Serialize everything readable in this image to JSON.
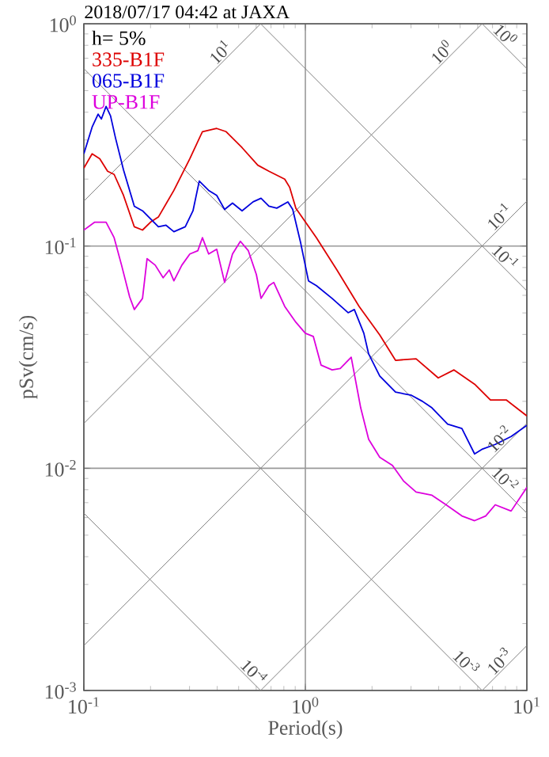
{
  "chart_data": {
    "type": "line",
    "title": "2018/07/17 04:42 at JAXA",
    "xlabel": "Period(s)",
    "ylabel": "pSv(cm/s)",
    "log": "xy",
    "grid": true,
    "legend": "top left",
    "xlim": [
      0.1,
      10
    ],
    "ylim": [
      0.001,
      1
    ],
    "xticks": [
      {
        "value": 0.1,
        "label": "10$^{-1}$"
      },
      {
        "value": 1,
        "label": "10$^{0}$"
      },
      {
        "value": 10,
        "label": "10$^{1}$"
      }
    ],
    "yticks": [
      {
        "value": 0.001,
        "label": "10$^{-3}$"
      },
      {
        "value": 0.01,
        "label": "10$^{-2}$"
      },
      {
        "value": 0.1,
        "label": "10$^{-1}$"
      },
      {
        "value": 1,
        "label": "10$^{0}$"
      }
    ],
    "annotations": [
      "h= 5%",
      {
        "text": "10$^{1}$",
        "x": 0.44,
        "y": 0.7003
      },
      {
        "text": "10$^{0}$",
        "x": 7.5,
        "y": 0.8377
      },
      {
        "text": "10$^{0}$",
        "x": 4.4,
        "y": 0.7003
      },
      {
        "text": "10$^{-1}$",
        "x": 8,
        "y": 0.1273
      },
      {
        "text": "10$^{-1}$",
        "x": 7.5,
        "y": 0.08377
      },
      {
        "text": "10$^{-2}$",
        "x": 8,
        "y": 0.01273
      },
      {
        "text": "10$^{-2}$",
        "x": 7.5,
        "y": 0.008377
      },
      {
        "text": "10$^{-3}$",
        "x": 8,
        "y": 0.001273
      },
      {
        "text": "10$^{-3}$",
        "x": 5,
        "y": 0.0012566
      },
      {
        "text": "10$^{-4}$",
        "x": 0.55,
        "y": 0.001142
      }
    ],
    "series": [
      {
        "color": "#808080",
        "x": [
          6.283,
          10
        ],
        "values": [
          1,
          0.6283
        ]
      },
      {
        "color": "#808080",
        "x": [
          0.6283,
          10
        ],
        "values": [
          1,
          0.06283
        ]
      },
      {
        "color": "#808080",
        "x": [
          0.1,
          10
        ],
        "values": [
          0.6283,
          0.006283
        ]
      },
      {
        "color": "#808080",
        "x": [
          0.1,
          6.283
        ],
        "values": [
          0.06283,
          0.001
        ]
      },
      {
        "color": "#808080",
        "x": [
          0.1,
          0.6283
        ],
        "values": [
          0.006283,
          0.001
        ]
      },
      {
        "color": "#808080",
        "x": [
          0.1,
          0.6283
        ],
        "values": [
          0.1592,
          1
        ]
      },
      {
        "color": "#808080",
        "x": [
          0.1,
          6.283
        ],
        "values": [
          0.01592,
          1
        ]
      },
      {
        "color": "#808080",
        "x": [
          0.1,
          10
        ],
        "values": [
          0.001592,
          0.1592
        ]
      },
      {
        "color": "#808080",
        "x": [
          0.6283,
          10
        ],
        "values": [
          0.001,
          0.01592
        ]
      },
      {
        "color": "#808080",
        "x": [
          6.283,
          10
        ],
        "values": [
          0.001,
          0.001592
        ]
      },
      {
        "name": "335-B1F",
        "color": "#dd0000",
        "x": [
          0.1,
          0.109,
          0.118,
          0.128,
          0.137,
          0.151,
          0.169,
          0.184,
          0.2,
          0.217,
          0.255,
          0.301,
          0.343,
          0.398,
          0.439,
          0.518,
          0.61,
          0.685,
          0.807,
          0.849,
          0.906,
          1.122,
          1.389,
          1.749,
          2.167,
          2.553,
          3.162,
          3.981,
          4.69,
          5.81,
          6.85,
          8.07,
          10
        ],
        "values": [
          0.224,
          0.26,
          0.247,
          0.217,
          0.21,
          0.169,
          0.122,
          0.118,
          0.128,
          0.135,
          0.178,
          0.247,
          0.327,
          0.338,
          0.327,
          0.277,
          0.231,
          0.217,
          0.2,
          0.184,
          0.148,
          0.109,
          0.078,
          0.0535,
          0.0398,
          0.0306,
          0.0311,
          0.0255,
          0.0277,
          0.0239,
          0.0203,
          0.0203,
          0.0172
        ]
      },
      {
        "name": "065-B1F",
        "color": "#0000dd",
        "x": [
          0.1,
          0.109,
          0.116,
          0.12,
          0.126,
          0.132,
          0.139,
          0.151,
          0.169,
          0.184,
          0.217,
          0.235,
          0.255,
          0.287,
          0.311,
          0.332,
          0.366,
          0.398,
          0.432,
          0.469,
          0.518,
          0.581,
          0.631,
          0.685,
          0.743,
          0.834,
          0.877,
          0.953,
          1.033,
          1.122,
          1.321,
          1.56,
          1.664,
          1.837,
          1.931,
          2.167,
          2.553,
          3.013,
          3.38,
          3.73,
          4.39,
          5.09,
          5.81,
          6.31,
          7.2,
          8.49,
          10
        ],
        "values": [
          0.26,
          0.343,
          0.392,
          0.373,
          0.425,
          0.385,
          0.306,
          0.22,
          0.151,
          0.144,
          0.122,
          0.124,
          0.116,
          0.122,
          0.144,
          0.196,
          0.178,
          0.169,
          0.146,
          0.156,
          0.144,
          0.158,
          0.164,
          0.151,
          0.148,
          0.158,
          0.146,
          0.103,
          0.0697,
          0.0663,
          0.0581,
          0.0501,
          0.0518,
          0.0405,
          0.0327,
          0.026,
          0.022,
          0.0213,
          0.02,
          0.0187,
          0.0158,
          0.0151,
          0.0116,
          0.0122,
          0.0128,
          0.0139,
          0.0156
        ]
      },
      {
        "name": "UP-B1F",
        "color": "#dd00dd",
        "x": [
          0.1,
          0.112,
          0.126,
          0.137,
          0.148,
          0.161,
          0.169,
          0.184,
          0.193,
          0.21,
          0.228,
          0.243,
          0.255,
          0.277,
          0.301,
          0.327,
          0.343,
          0.366,
          0.398,
          0.432,
          0.469,
          0.509,
          0.553,
          0.601,
          0.631,
          0.685,
          0.72,
          0.807,
          0.906,
          1.0,
          1.086,
          1.178,
          1.321,
          1.437,
          1.611,
          1.778,
          1.931,
          2.167,
          2.472,
          2.773,
          3.162,
          3.73,
          4.32,
          5.09,
          5.81,
          6.52,
          7.2,
          8.49,
          10
        ],
        "values": [
          0.118,
          0.128,
          0.128,
          0.109,
          0.082,
          0.059,
          0.0518,
          0.0581,
          0.0877,
          0.082,
          0.072,
          0.078,
          0.0697,
          0.082,
          0.0921,
          0.0952,
          0.109,
          0.0921,
          0.0968,
          0.0686,
          0.0921,
          0.105,
          0.0952,
          0.0744,
          0.0581,
          0.0663,
          0.0686,
          0.0535,
          0.0454,
          0.0405,
          0.0392,
          0.0291,
          0.0277,
          0.0281,
          0.0316,
          0.0187,
          0.0135,
          0.0112,
          0.0103,
          0.00877,
          0.00782,
          0.00756,
          0.00685,
          0.0061,
          0.00581,
          0.0061,
          0.00685,
          0.00642,
          0.0082
        ]
      }
    ]
  }
}
